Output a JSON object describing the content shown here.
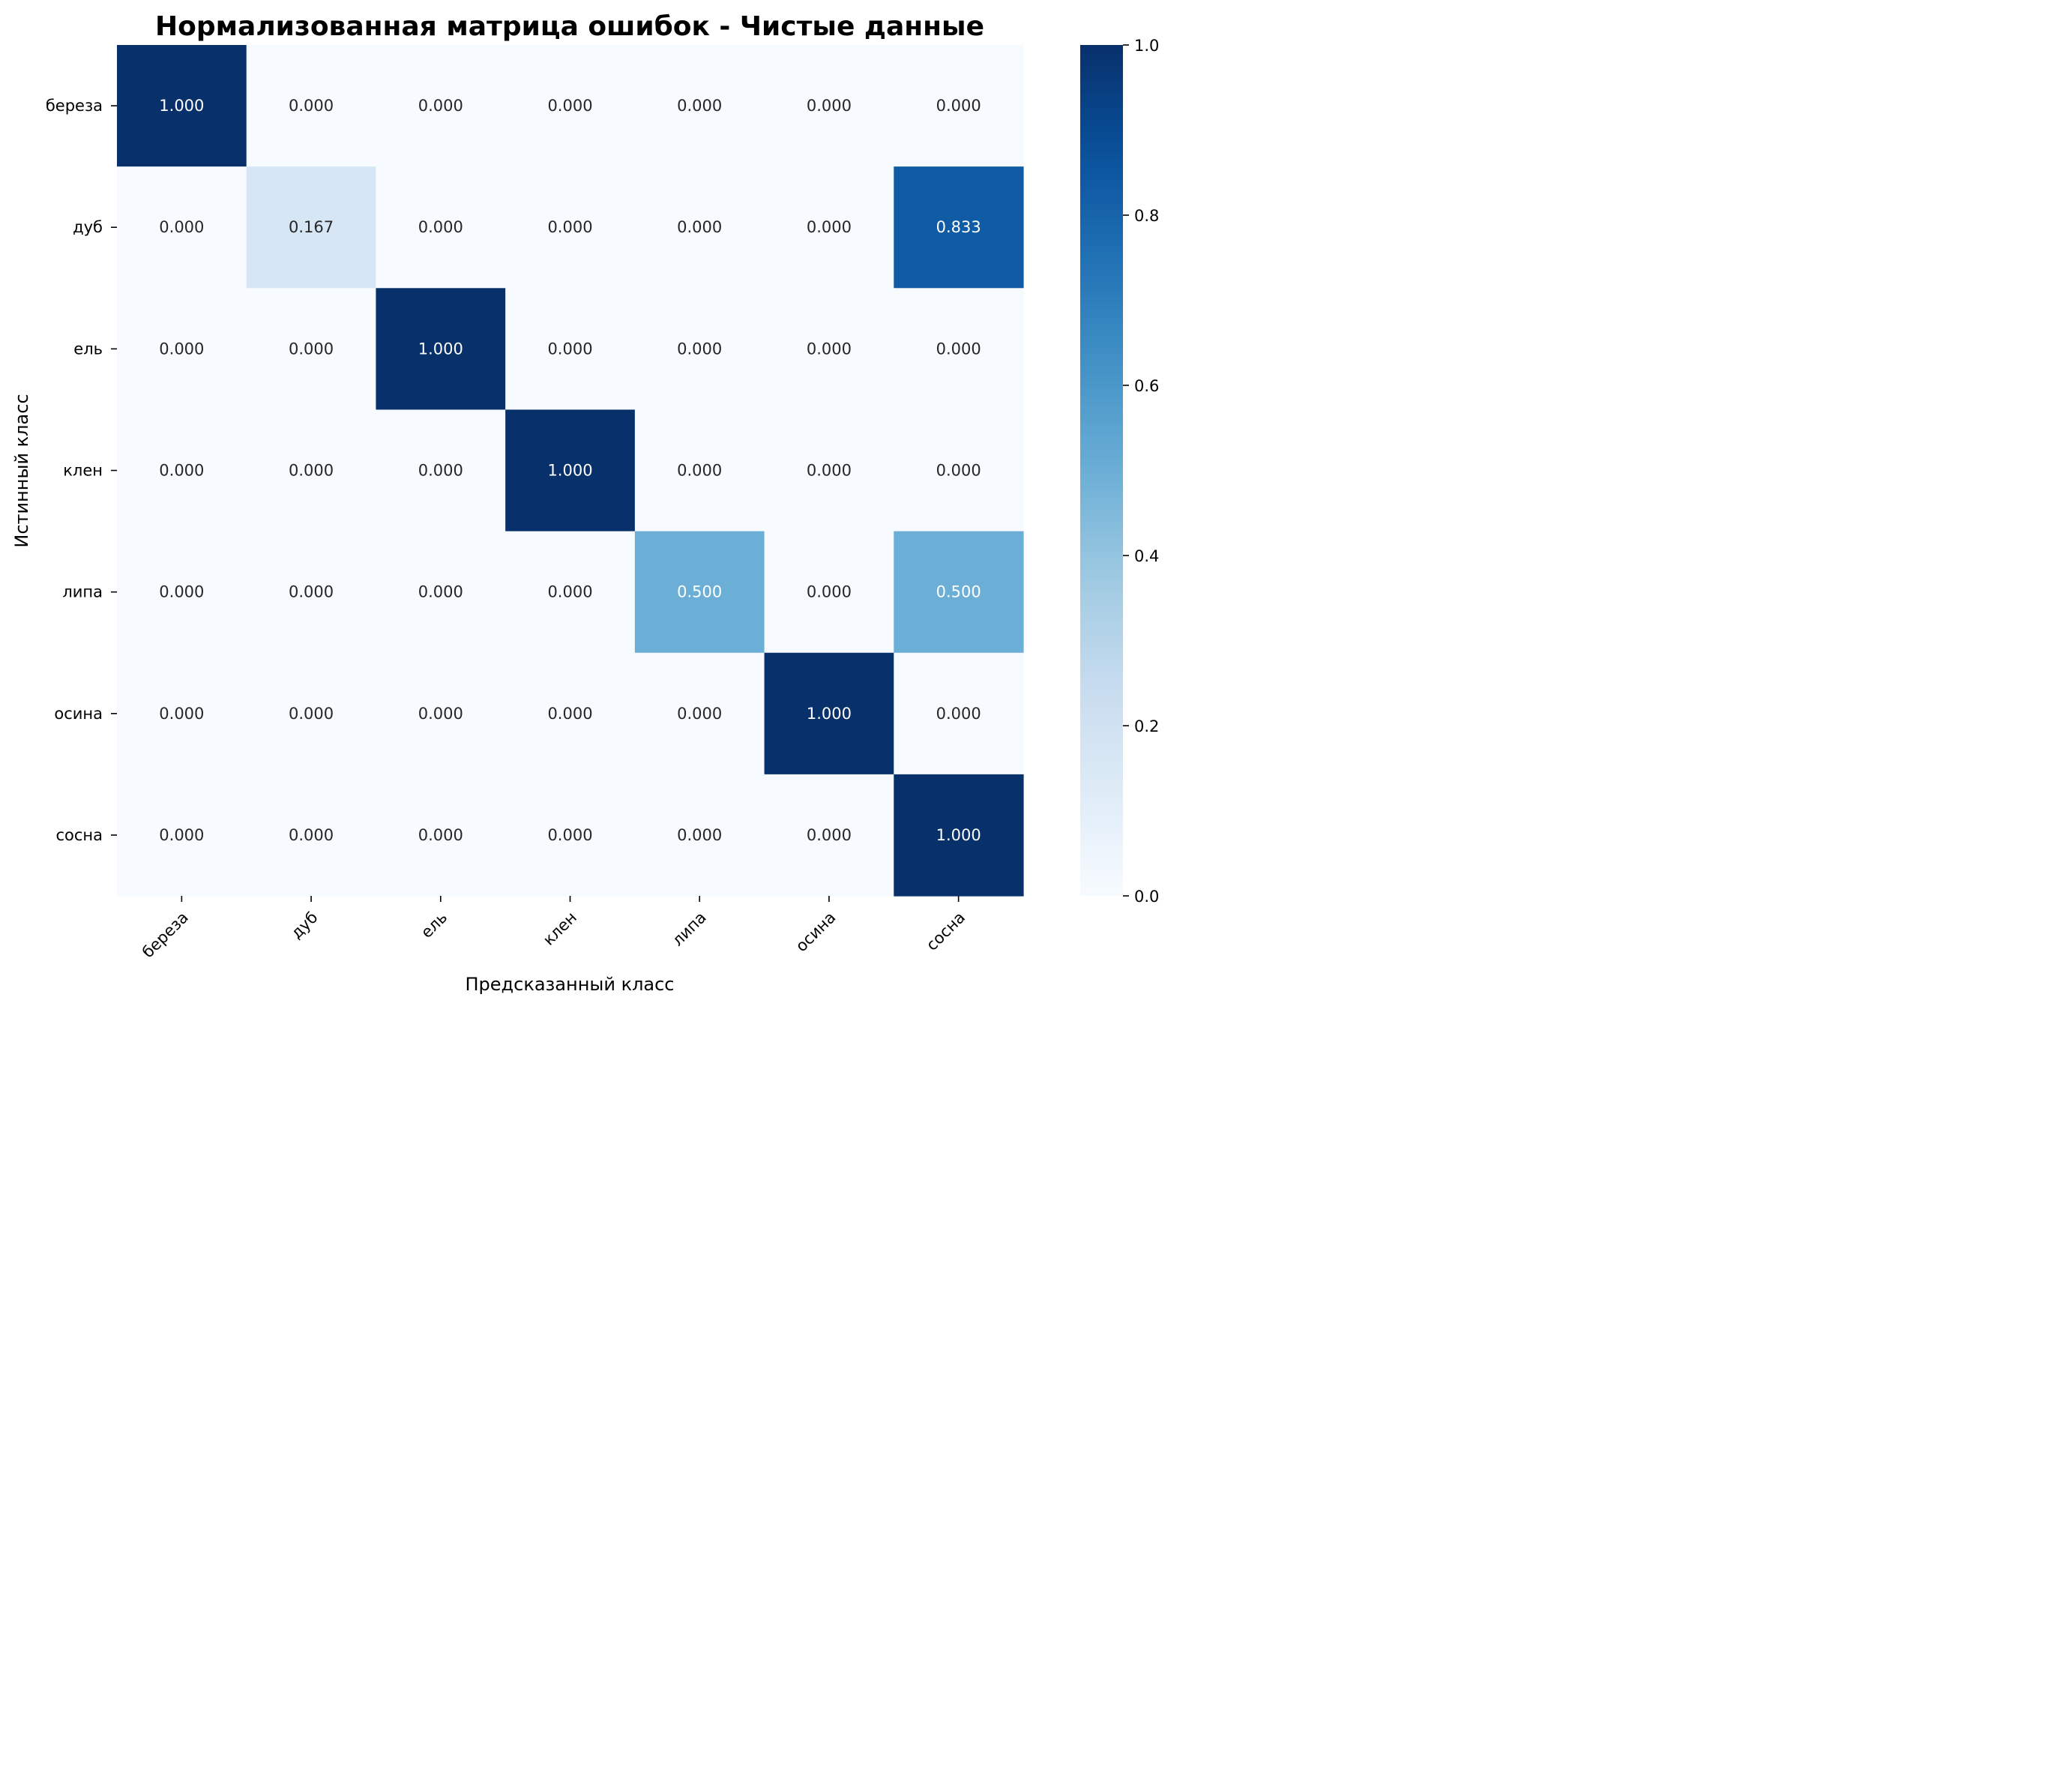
{
  "chart_data": {
    "type": "heatmap",
    "title": "Нормализованная матрица ошибок - Чистые данные",
    "xlabel": "Предсказанный класс",
    "ylabel": "Истинный класс",
    "x_categories": [
      "береза",
      "дуб",
      "ель",
      "клен",
      "липа",
      "осина",
      "сосна"
    ],
    "y_categories": [
      "береза",
      "дуб",
      "ель",
      "клен",
      "липа",
      "осина",
      "сосна"
    ],
    "values": [
      [
        1.0,
        0.0,
        0.0,
        0.0,
        0.0,
        0.0,
        0.0
      ],
      [
        0.0,
        0.167,
        0.0,
        0.0,
        0.0,
        0.0,
        0.833
      ],
      [
        0.0,
        0.0,
        1.0,
        0.0,
        0.0,
        0.0,
        0.0
      ],
      [
        0.0,
        0.0,
        0.0,
        1.0,
        0.0,
        0.0,
        0.0
      ],
      [
        0.0,
        0.0,
        0.0,
        0.0,
        0.5,
        0.0,
        0.5
      ],
      [
        0.0,
        0.0,
        0.0,
        0.0,
        0.0,
        1.0,
        0.0
      ],
      [
        0.0,
        0.0,
        0.0,
        0.0,
        0.0,
        0.0,
        1.0
      ]
    ],
    "value_format": "0.000",
    "colormap": "Blues",
    "colorbar": {
      "range": [
        0.0,
        1.0
      ],
      "ticks": [
        "0.0",
        "0.2",
        "0.4",
        "0.6",
        "0.8",
        "1.0"
      ]
    },
    "grid": false,
    "x_tick_rotation_deg": 45
  }
}
